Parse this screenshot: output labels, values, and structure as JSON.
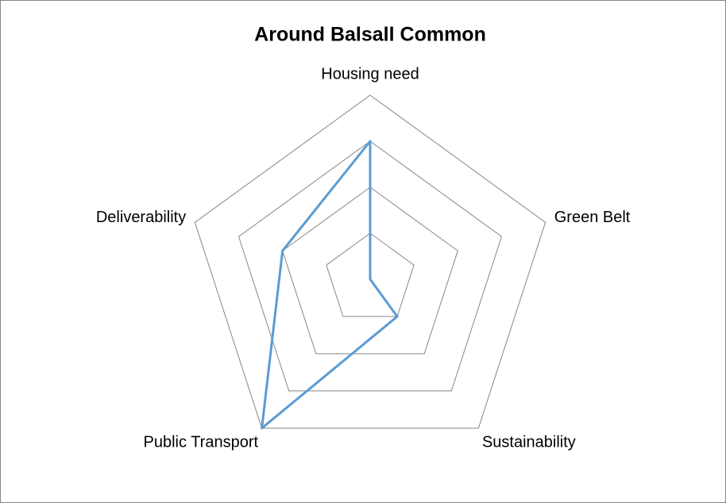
{
  "chart_data": {
    "type": "radar",
    "title": "Around Balsall Common",
    "categories": [
      "Housing need",
      "Green Belt",
      "Sustainability",
      "Public Transport",
      "Deliverability"
    ],
    "series": [
      {
        "name": "Around Balsall Common",
        "color": "#5b9bd5",
        "values": [
          3,
          0,
          1,
          4,
          2
        ]
      }
    ],
    "rlim": [
      0,
      4
    ],
    "rticks": [
      1,
      2,
      3,
      4
    ],
    "grid": true,
    "legend": false
  }
}
